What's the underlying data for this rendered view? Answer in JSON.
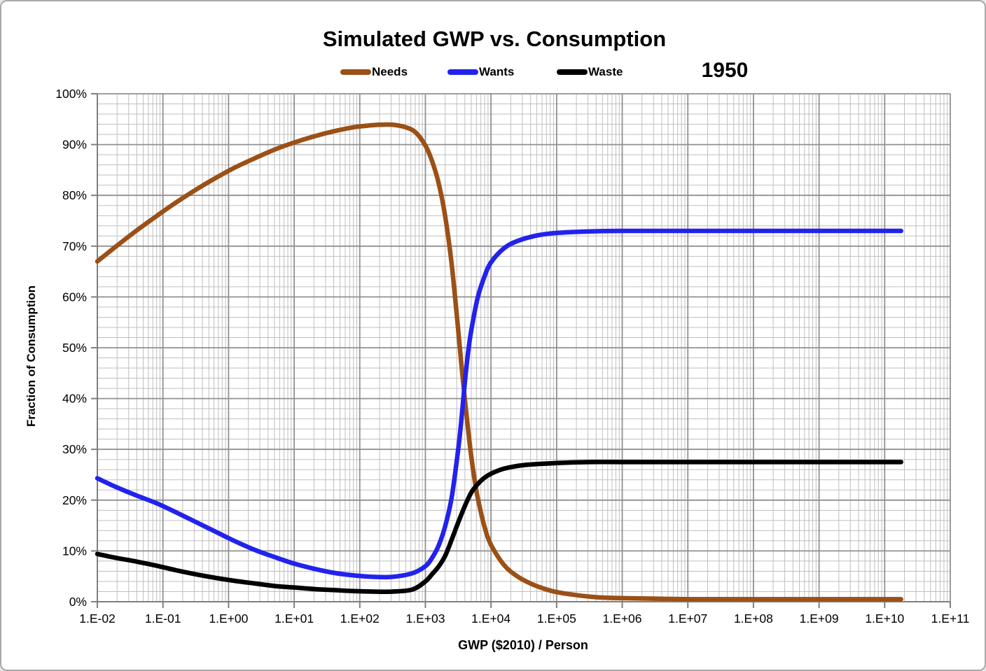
{
  "title": "Simulated GWP vs. Consumption",
  "annotation_year": "1950",
  "x_axis": {
    "label": "GWP ($2010) / Person",
    "tick_labels": [
      "1.E-02",
      "1.E-01",
      "1.E+00",
      "1.E+01",
      "1.E+02",
      "1.E+03",
      "1.E+04",
      "1.E+05",
      "1.E+06",
      "1.E+07",
      "1.E+08",
      "1.E+09",
      "1.E+10",
      "1.E+11"
    ],
    "tick_exponents": [
      -2,
      -1,
      0,
      1,
      2,
      3,
      4,
      5,
      6,
      7,
      8,
      9,
      10,
      11
    ]
  },
  "y_axis": {
    "label": "Fraction of Consumption",
    "tick_labels": [
      "0%",
      "10%",
      "20%",
      "30%",
      "40%",
      "50%",
      "60%",
      "70%",
      "80%",
      "90%",
      "100%"
    ],
    "tick_values": [
      0,
      10,
      20,
      30,
      40,
      50,
      60,
      70,
      80,
      90,
      100
    ]
  },
  "colors": {
    "grid_minor": "#BFBFBF",
    "grid_major": "#919191",
    "axis": "#7F7F7F",
    "text": "#000000"
  },
  "chart_data": {
    "type": "line",
    "title": "Simulated GWP vs. Consumption",
    "xlabel": "GWP ($2010) / Person",
    "ylabel": "Fraction of Consumption",
    "x_scale": "log10",
    "x_range_exponents": [
      -2,
      11
    ],
    "y_range_percent": [
      0,
      100
    ],
    "grid": {
      "major_y_step_pct": 10,
      "minor_y_step_pct": 2,
      "log_minor_x": true
    },
    "legend_position": "top",
    "annotation": "1950",
    "series": [
      {
        "name": "Needs",
        "color": "#9B5016",
        "points_log10x_pct": [
          [
            -2,
            67
          ],
          [
            -1.7,
            70.1
          ],
          [
            -1.4,
            73.1
          ],
          [
            -1.1,
            75.9
          ],
          [
            -0.8,
            78.6
          ],
          [
            -0.5,
            81.1
          ],
          [
            -0.2,
            83.4
          ],
          [
            0.1,
            85.5
          ],
          [
            0.4,
            87.3
          ],
          [
            0.7,
            89.0
          ],
          [
            1.0,
            90.4
          ],
          [
            1.3,
            91.6
          ],
          [
            1.6,
            92.6
          ],
          [
            1.9,
            93.4
          ],
          [
            2.1,
            93.7
          ],
          [
            2.3,
            93.9
          ],
          [
            2.5,
            93.9
          ],
          [
            2.7,
            93.4
          ],
          [
            2.85,
            92.4
          ],
          [
            3.0,
            89.8
          ],
          [
            3.1,
            86.8
          ],
          [
            3.2,
            82.5
          ],
          [
            3.3,
            76.0
          ],
          [
            3.4,
            66.5
          ],
          [
            3.5,
            53.5
          ],
          [
            3.55,
            46.5
          ],
          [
            3.6,
            40.0
          ],
          [
            3.65,
            34.0
          ],
          [
            3.7,
            28.5
          ],
          [
            3.75,
            24.0
          ],
          [
            3.8,
            20.3
          ],
          [
            3.9,
            14.8
          ],
          [
            4.0,
            11.2
          ],
          [
            4.2,
            7.2
          ],
          [
            4.4,
            5.0
          ],
          [
            4.6,
            3.6
          ],
          [
            4.8,
            2.6
          ],
          [
            5.0,
            1.9
          ],
          [
            5.3,
            1.3
          ],
          [
            5.6,
            0.9
          ],
          [
            6.0,
            0.7
          ],
          [
            6.5,
            0.6
          ],
          [
            7.0,
            0.5
          ],
          [
            8.0,
            0.5
          ],
          [
            9.0,
            0.5
          ],
          [
            10.0,
            0.5
          ],
          [
            10.25,
            0.5
          ]
        ]
      },
      {
        "name": "Wants",
        "color": "#2222EE",
        "points_log10x_pct": [
          [
            -2,
            24.3
          ],
          [
            -1.7,
            22.5
          ],
          [
            -1.4,
            20.9
          ],
          [
            -1.1,
            19.4
          ],
          [
            -0.8,
            17.6
          ],
          [
            -0.5,
            15.7
          ],
          [
            -0.2,
            13.8
          ],
          [
            0.1,
            11.9
          ],
          [
            0.4,
            10.2
          ],
          [
            0.7,
            8.8
          ],
          [
            1.0,
            7.5
          ],
          [
            1.3,
            6.5
          ],
          [
            1.6,
            5.7
          ],
          [
            1.9,
            5.2
          ],
          [
            2.2,
            4.9
          ],
          [
            2.5,
            4.9
          ],
          [
            2.8,
            5.6
          ],
          [
            3.0,
            7.0
          ],
          [
            3.1,
            8.6
          ],
          [
            3.2,
            11.0
          ],
          [
            3.3,
            14.8
          ],
          [
            3.4,
            20.5
          ],
          [
            3.5,
            30.0
          ],
          [
            3.55,
            36.0
          ],
          [
            3.6,
            43.0
          ],
          [
            3.65,
            49.0
          ],
          [
            3.7,
            53.5
          ],
          [
            3.8,
            60.0
          ],
          [
            3.9,
            64.0
          ],
          [
            4.0,
            66.8
          ],
          [
            4.2,
            69.6
          ],
          [
            4.4,
            71.0
          ],
          [
            4.7,
            72.1
          ],
          [
            5.0,
            72.6
          ],
          [
            5.5,
            72.9
          ],
          [
            6.0,
            73.0
          ],
          [
            7.0,
            73.0
          ],
          [
            8.0,
            73.0
          ],
          [
            9.0,
            73.0
          ],
          [
            10.0,
            73.0
          ],
          [
            10.25,
            73.0
          ]
        ]
      },
      {
        "name": "Waste",
        "color": "#000000",
        "points_log10x_pct": [
          [
            -2,
            9.4
          ],
          [
            -1.7,
            8.6
          ],
          [
            -1.4,
            7.9
          ],
          [
            -1.1,
            7.1
          ],
          [
            -0.8,
            6.2
          ],
          [
            -0.5,
            5.4
          ],
          [
            -0.2,
            4.7
          ],
          [
            0.1,
            4.1
          ],
          [
            0.4,
            3.6
          ],
          [
            0.7,
            3.1
          ],
          [
            1.0,
            2.8
          ],
          [
            1.3,
            2.5
          ],
          [
            1.6,
            2.3
          ],
          [
            1.9,
            2.1
          ],
          [
            2.2,
            2.0
          ],
          [
            2.5,
            2.0
          ],
          [
            2.8,
            2.4
          ],
          [
            3.0,
            4.0
          ],
          [
            3.1,
            5.4
          ],
          [
            3.2,
            6.9
          ],
          [
            3.3,
            9.0
          ],
          [
            3.4,
            12.2
          ],
          [
            3.5,
            15.6
          ],
          [
            3.6,
            18.8
          ],
          [
            3.7,
            21.5
          ],
          [
            3.8,
            23.2
          ],
          [
            3.9,
            24.4
          ],
          [
            4.0,
            25.2
          ],
          [
            4.2,
            26.2
          ],
          [
            4.5,
            26.9
          ],
          [
            5.0,
            27.3
          ],
          [
            5.5,
            27.5
          ],
          [
            6.0,
            27.5
          ],
          [
            7.0,
            27.5
          ],
          [
            8.0,
            27.5
          ],
          [
            9.0,
            27.5
          ],
          [
            10.0,
            27.5
          ],
          [
            10.25,
            27.5
          ]
        ]
      }
    ]
  },
  "legend": {
    "items": [
      {
        "label": "Needs"
      },
      {
        "label": "Wants"
      },
      {
        "label": "Waste"
      }
    ]
  }
}
